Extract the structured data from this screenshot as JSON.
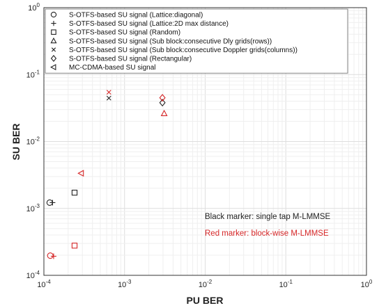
{
  "chart_data": {
    "type": "scatter",
    "xlabel": "PU BER",
    "ylabel": "SU BER",
    "xscale": "log",
    "yscale": "log",
    "xlim": [
      0.0001,
      1
    ],
    "ylim": [
      0.0001,
      1
    ],
    "x_ticks": [
      {
        "value": 0.0001,
        "base": "10",
        "exp": "-4"
      },
      {
        "value": 0.001,
        "base": "10",
        "exp": "-3"
      },
      {
        "value": 0.01,
        "base": "10",
        "exp": "-2"
      },
      {
        "value": 0.1,
        "base": "10",
        "exp": "-1"
      },
      {
        "value": 1,
        "base": "10",
        "exp": "0"
      }
    ],
    "y_ticks": [
      {
        "value": 0.0001,
        "base": "10",
        "exp": "-4"
      },
      {
        "value": 0.001,
        "base": "10",
        "exp": "-3"
      },
      {
        "value": 0.01,
        "base": "10",
        "exp": "-2"
      },
      {
        "value": 0.1,
        "base": "10",
        "exp": "-1"
      },
      {
        "value": 1,
        "base": "10",
        "exp": "0"
      }
    ],
    "grid": true,
    "legend_position": "top-left",
    "series": [
      {
        "name": "S-OTFS-based SU signal (Lattice:diagonal)",
        "marker": "circle",
        "points": [
          {
            "x": 0.000118,
            "y": 0.00122,
            "color": "#222222"
          },
          {
            "x": 0.00012,
            "y": 0.000197,
            "color": "#d62728"
          }
        ]
      },
      {
        "name": "S-OTFS-based SU signal (Lattice:2D max distance)",
        "marker": "plus",
        "points": [
          {
            "x": 0.000128,
            "y": 0.00122,
            "color": "#222222"
          },
          {
            "x": 0.000132,
            "y": 0.000193,
            "color": "#d62728"
          }
        ]
      },
      {
        "name": "S-OTFS-based SU signal (Random)",
        "marker": "square",
        "points": [
          {
            "x": 0.00024,
            "y": 0.00172,
            "color": "#222222"
          },
          {
            "x": 0.00024,
            "y": 0.000278,
            "color": "#d62728"
          }
        ]
      },
      {
        "name": "S-OTFS-based SU signal (Sub block:consecutive Dly grids(rows))",
        "marker": "triangle-up",
        "points": [
          {
            "x": 0.0031,
            "y": 0.0262,
            "color": "#d62728"
          }
        ]
      },
      {
        "name": "S-OTFS-based SU signal (Sub block:consecutive Doppler grids(columns))",
        "marker": "cross",
        "points": [
          {
            "x": 0.00064,
            "y": 0.0445,
            "color": "#222222"
          },
          {
            "x": 0.00064,
            "y": 0.0545,
            "color": "#d62728"
          }
        ]
      },
      {
        "name": "S-OTFS-based SU signal (Rectangular)",
        "marker": "diamond",
        "points": [
          {
            "x": 0.00295,
            "y": 0.038,
            "color": "#222222"
          },
          {
            "x": 0.00295,
            "y": 0.045,
            "color": "#d62728"
          }
        ]
      },
      {
        "name": "MC-CDMA-based SU signal",
        "marker": "triangle-left",
        "points": [
          {
            "x": 0.00029,
            "y": 0.00335,
            "color": "#d62728"
          }
        ]
      }
    ],
    "annotations": [
      {
        "text": "Black marker: single tap M-LMMSE",
        "color": "#222222"
      },
      {
        "text": "Red marker: block-wise M-LMMSE",
        "color": "#d62728"
      }
    ]
  }
}
